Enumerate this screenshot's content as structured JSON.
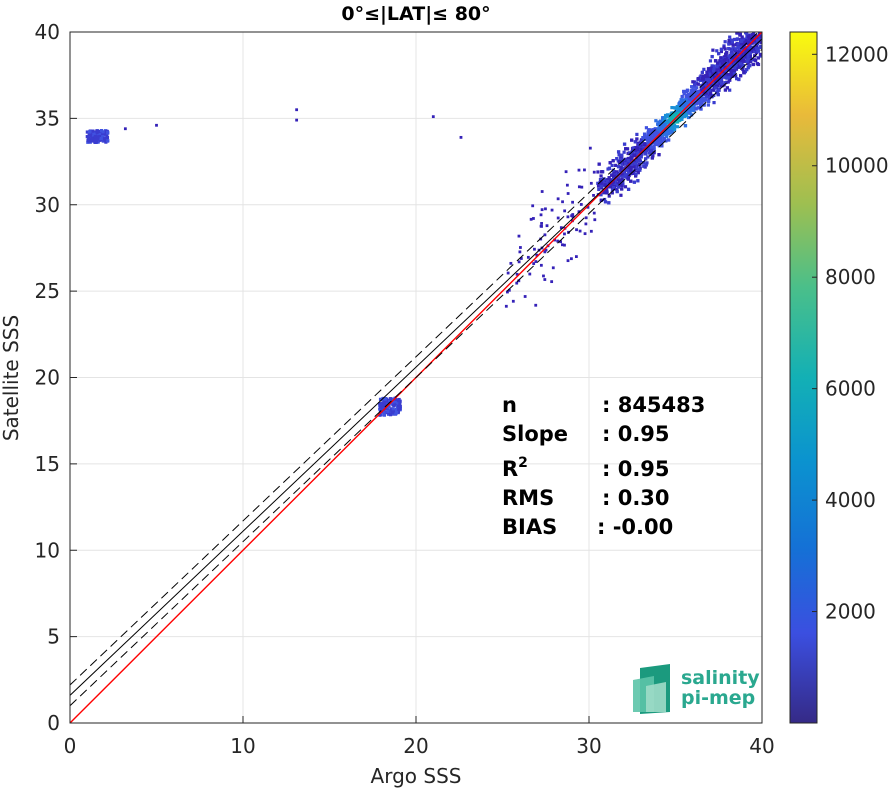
{
  "chart_data": {
    "type": "heatmap",
    "title": "0°≤|LAT|≤ 80°",
    "xlabel": "Argo SSS",
    "ylabel": "Satellite SSS",
    "xlim": [
      0,
      40
    ],
    "ylim": [
      0,
      40
    ],
    "xticks": [
      "0",
      "10",
      "20",
      "30",
      "40"
    ],
    "yticks": [
      "0",
      "5",
      "10",
      "15",
      "20",
      "25",
      "30",
      "35",
      "40"
    ],
    "grid": true,
    "colorbar": {
      "range": [
        0,
        12400
      ],
      "ticks": [
        "2000",
        "4000",
        "6000",
        "8000",
        "10000",
        "12000"
      ],
      "colormap": "parula"
    },
    "stats": [
      {
        "label": "n",
        "value": ": 845483"
      },
      {
        "label": "Slope",
        "value": ": 0.95"
      },
      {
        "label": "R2",
        "value": ": 0.95"
      },
      {
        "label": "RMS",
        "value": ": 0.30"
      },
      {
        "label": "BIAS",
        "value": ": -0.00"
      }
    ],
    "lines": [
      {
        "name": "one-to-one",
        "style": "solid",
        "color": "#ff0000",
        "x": [
          0,
          40
        ],
        "y": [
          0,
          40
        ]
      },
      {
        "name": "regression",
        "style": "solid",
        "color": "#000000",
        "x": [
          0,
          40
        ],
        "y": [
          1.6,
          39.6
        ]
      },
      {
        "name": "upper-bound",
        "style": "dashed",
        "color": "#000000",
        "x": [
          0,
          40
        ],
        "y": [
          2.2,
          40.2
        ]
      },
      {
        "name": "lower-bound",
        "style": "dashed",
        "color": "#000000",
        "x": [
          0,
          40
        ],
        "y": [
          1.0,
          39.0
        ]
      }
    ],
    "clusters": [
      {
        "x": [
          30.5,
          40
        ],
        "y": [
          29.5,
          40
        ],
        "center": [
          35,
          35
        ],
        "intensity": "high"
      },
      {
        "x": [
          17.9,
          19.1
        ],
        "y": [
          17.8,
          18.8
        ],
        "center": [
          18.5,
          18.3
        ],
        "intensity": "low"
      },
      {
        "x": [
          1.0,
          2.2
        ],
        "y": [
          33.6,
          34.3
        ],
        "center": [
          1.6,
          34.0
        ],
        "intensity": "low"
      }
    ]
  },
  "logo": {
    "line1": "salinity",
    "line2": "pi-mep",
    "color": "#2aa88f"
  }
}
